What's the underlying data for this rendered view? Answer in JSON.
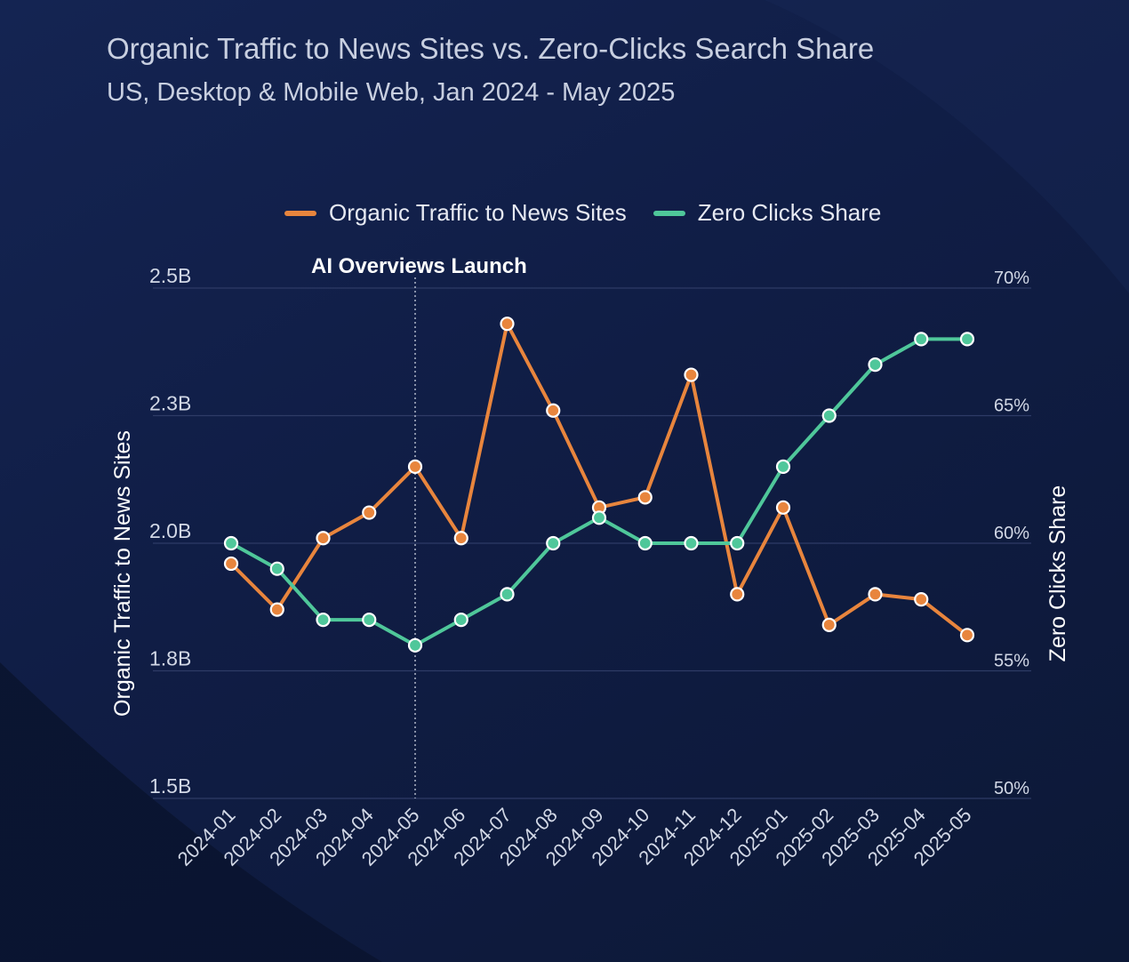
{
  "title": "Organic Traffic to News Sites vs. Zero-Clicks Search Share",
  "subtitle": "US, Desktop & Mobile Web, Jan 2024 - May 2025",
  "colors": {
    "organic": "#e8853d",
    "zero_clicks": "#4fc79a",
    "gridline": "#2e3b66",
    "marker_stroke": "#ffffff"
  },
  "chart_data": {
    "type": "line",
    "title": "Organic Traffic to News Sites vs. Zero-Clicks Search Share",
    "subtitle": "US, Desktop & Mobile Web, Jan 2024 - May 2025",
    "categories": [
      "2024-01",
      "2024-02",
      "2024-03",
      "2024-04",
      "2024-05",
      "2024-06",
      "2024-07",
      "2024-08",
      "2024-09",
      "2024-10",
      "2024-11",
      "2024-12",
      "2025-01",
      "2025-02",
      "2025-03",
      "2025-04",
      "2025-05"
    ],
    "series": [
      {
        "name": "Organic Traffic to News Sites",
        "axis": "left",
        "color": "#e8853d",
        "values": [
          1.96,
          1.87,
          2.01,
          2.06,
          2.15,
          2.01,
          2.43,
          2.26,
          2.07,
          2.09,
          2.33,
          1.9,
          2.07,
          1.84,
          1.9,
          1.89,
          1.82
        ]
      },
      {
        "name": "Zero Clicks Share",
        "axis": "right",
        "color": "#4fc79a",
        "values": [
          60,
          59,
          57,
          57,
          56,
          57,
          58,
          60,
          61,
          60,
          60,
          60,
          63,
          65,
          67,
          68,
          68
        ]
      }
    ],
    "left_axis": {
      "label": "Organic Traffic to News Sites",
      "ticks": [
        {
          "value": 1.5,
          "label": "1.5B"
        },
        {
          "value": 1.75,
          "label": "1.8B"
        },
        {
          "value": 2.0,
          "label": "2.0B"
        },
        {
          "value": 2.25,
          "label": "2.3B"
        },
        {
          "value": 2.5,
          "label": "2.5B"
        }
      ],
      "range": [
        1.5,
        2.5
      ],
      "unit": "billions"
    },
    "right_axis": {
      "label": "Zero Clicks Share",
      "ticks": [
        {
          "value": 50,
          "label": "50%"
        },
        {
          "value": 55,
          "label": "55%"
        },
        {
          "value": 60,
          "label": "60%"
        },
        {
          "value": 65,
          "label": "65%"
        },
        {
          "value": 70,
          "label": "70%"
        }
      ],
      "range": [
        50,
        70
      ],
      "unit": "percent"
    },
    "annotations": [
      {
        "category": "2024-05",
        "text": "AI Overviews Launch",
        "style": "dotted-vertical-line"
      }
    ],
    "grid": true,
    "legend": "top-center"
  }
}
